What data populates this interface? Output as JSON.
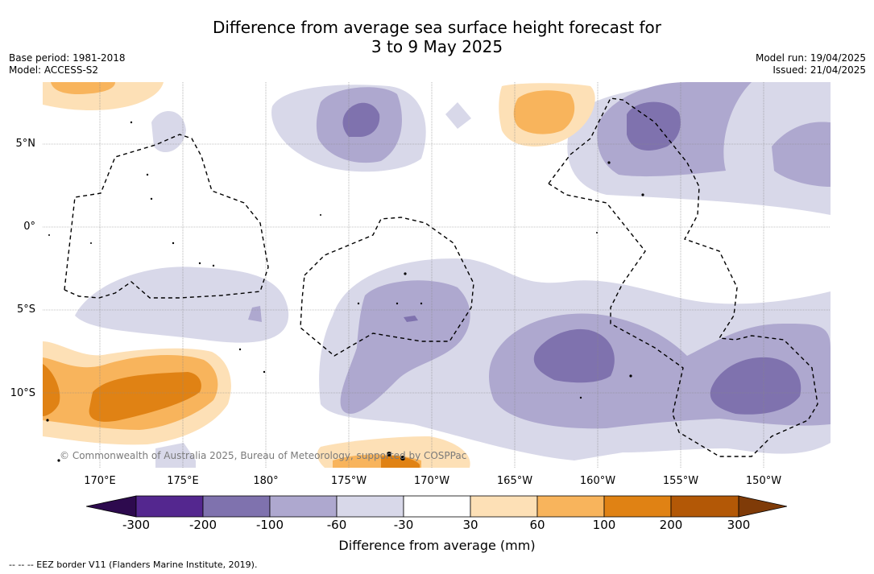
{
  "title_line1": "Difference from average sea surface height forecast for",
  "title_line2": "3 to 9 May 2025",
  "base_period": "Base period: 1981-2018",
  "model": "Model: ACCESS-S2",
  "model_run": "Model run: 19/04/2025",
  "issued": "Issued: 21/04/2025",
  "lat_labels": [
    "5°N",
    "0°",
    "5°S",
    "10°S"
  ],
  "lon_labels": [
    "170°E",
    "175°E",
    "180°",
    "175°W",
    "170°W",
    "165°W",
    "160°W",
    "155°W",
    "150°W"
  ],
  "copyright": "© Commonwealth of Australia 2025, Bureau of Meteorology, supported by COSPPac",
  "colorbar": {
    "ticks": [
      "-300",
      "-200",
      "-100",
      "-60",
      "-30",
      "30",
      "60",
      "100",
      "200",
      "300"
    ],
    "label": "Difference from average (mm)",
    "colors": {
      "below_-300": "#2d0a4e",
      "-300_-200": "#54278f",
      "-200_-100": "#7f72ae",
      "-100_-60": "#aea8cf",
      "-60_-30": "#d8d8e9",
      "-30_30": "#ffffff",
      "30_60": "#fde0b6",
      "60_100": "#f8b45c",
      "100_200": "#e08214",
      "200_300": "#b35806",
      "above_300": "#7f3b08"
    }
  },
  "footnote": "-- -- -- EEZ border V11 (Flanders Marine Institute, 2019)."
}
